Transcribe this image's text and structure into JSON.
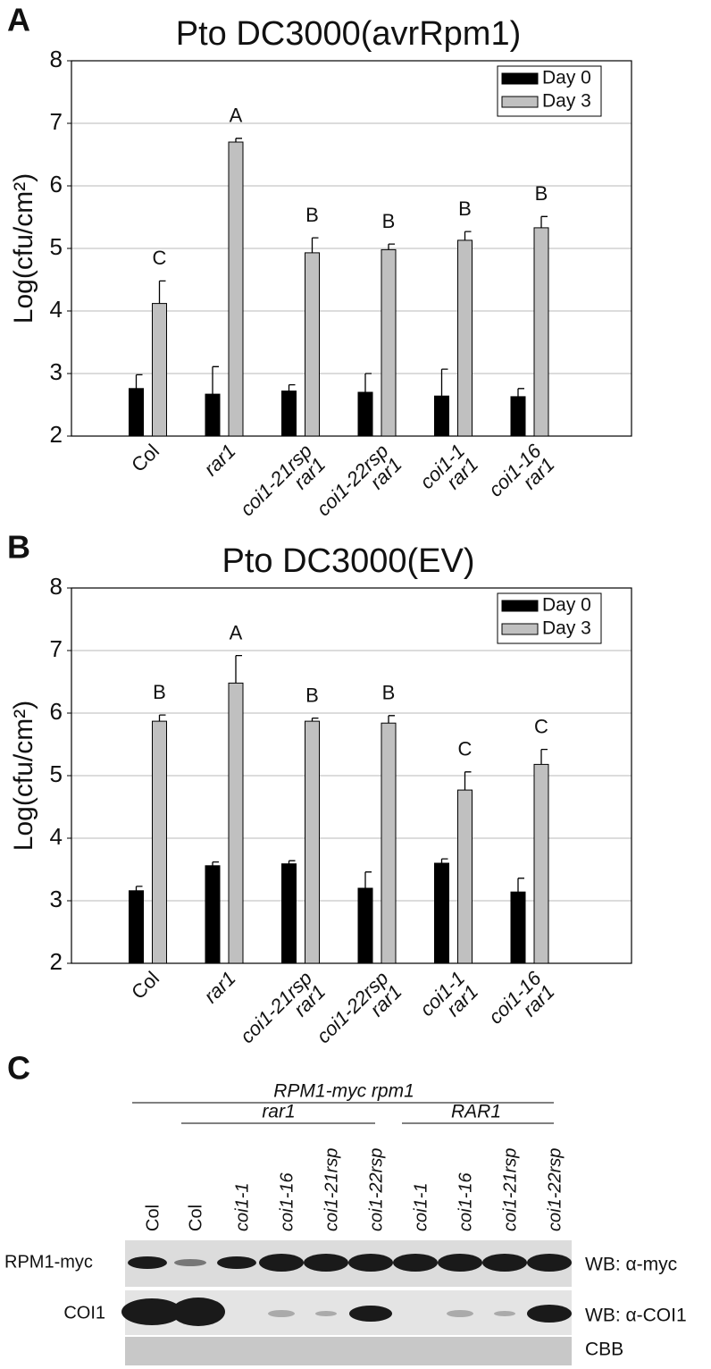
{
  "chart_data": [
    {
      "type": "bar",
      "panel": "A",
      "title": "Pto DC3000(avrRpm1)",
      "ylabel": "Log(cfu/cm²)",
      "categories": [
        [
          "Col"
        ],
        [
          "rar1"
        ],
        [
          "coi1-21rsp",
          "rar1"
        ],
        [
          "coi1-22rsp",
          "rar1"
        ],
        [
          "coi1-1",
          "rar1"
        ],
        [
          "coi1-16",
          "rar1"
        ]
      ],
      "series": [
        {
          "name": "Day 0",
          "color": "#000000",
          "values": [
            2.76,
            2.67,
            2.72,
            2.7,
            2.64,
            2.63
          ],
          "errors": [
            0.22,
            0.44,
            0.1,
            0.3,
            0.43,
            0.13
          ]
        },
        {
          "name": "Day 3",
          "color": "#c0c0c0",
          "values": [
            4.12,
            6.7,
            4.93,
            4.98,
            5.13,
            5.33
          ],
          "errors": [
            0.36,
            0.06,
            0.24,
            0.09,
            0.14,
            0.18
          ]
        }
      ],
      "annotations": [
        "C",
        "A",
        "B",
        "B",
        "B",
        "B"
      ],
      "ylim": [
        2,
        8
      ],
      "yticks": [
        2,
        3,
        4,
        5,
        6,
        7,
        8
      ],
      "grid": true,
      "legend": "upper right"
    },
    {
      "type": "bar",
      "panel": "B",
      "title": "Pto DC3000(EV)",
      "ylabel": "Log(cfu/cm²)",
      "categories": [
        [
          "Col"
        ],
        [
          "rar1"
        ],
        [
          "coi1-21rsp",
          "rar1"
        ],
        [
          "coi1-22rsp",
          "rar1"
        ],
        [
          "coi1-1",
          "rar1"
        ],
        [
          "coi1-16",
          "rar1"
        ]
      ],
      "series": [
        {
          "name": "Day 0",
          "color": "#000000",
          "values": [
            3.16,
            3.56,
            3.59,
            3.2,
            3.6,
            3.14
          ],
          "errors": [
            0.07,
            0.06,
            0.05,
            0.26,
            0.07,
            0.22
          ]
        },
        {
          "name": "Day 3",
          "color": "#c0c0c0",
          "values": [
            5.87,
            6.48,
            5.87,
            5.84,
            4.77,
            5.18
          ],
          "errors": [
            0.1,
            0.44,
            0.05,
            0.12,
            0.29,
            0.24
          ]
        }
      ],
      "annotations": [
        "B",
        "A",
        "B",
        "B",
        "C",
        "C"
      ],
      "ylim": [
        2,
        8
      ],
      "yticks": [
        2,
        3,
        4,
        5,
        6,
        7,
        8
      ],
      "grid": true,
      "legend": "upper right"
    }
  ],
  "blot": {
    "panel": "C",
    "header": "RPM1-myc rpm1",
    "groups": [
      "rar1",
      "RAR1"
    ],
    "lanes": [
      "Col",
      "Col",
      "coi1-1",
      "coi1-16",
      "coi1-21rsp",
      "coi1-22rsp",
      "coi1-1",
      "coi1-16",
      "coi1-21rsp",
      "coi1-22rsp"
    ],
    "rows": [
      "RPM1-myc",
      "COI1"
    ],
    "probes": [
      "WB: α-myc",
      "WB: α-COI1",
      "CBB"
    ]
  }
}
